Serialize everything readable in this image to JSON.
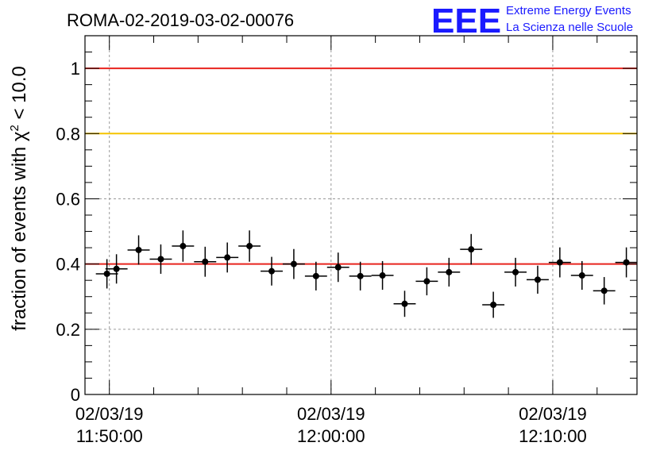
{
  "chart_data": {
    "type": "scatter",
    "title": "ROMA-02-2019-03-02-00076",
    "ylabel": "fraction of events with χ² < 10.0",
    "ylabel_main": "fraction of events with χ",
    "ylabel_sup": "2",
    "ylabel_tail": " < 10.0",
    "xlabel": "",
    "ylim": [
      0,
      1.1
    ],
    "yticks": [
      "0",
      "0.2",
      "0.4",
      "0.6",
      "0.8",
      "1"
    ],
    "ytick_values": [
      0,
      0.2,
      0.4,
      0.6,
      0.8,
      1.0
    ],
    "xlim_minutes": [
      -1.1,
      23.8
    ],
    "xticks": [
      {
        "minute": 0,
        "date": "02/03/19",
        "time": "11:50:00"
      },
      {
        "minute": 10,
        "date": "02/03/19",
        "time": "12:00:00"
      },
      {
        "minute": 20,
        "date": "02/03/19",
        "time": "12:10:00"
      }
    ],
    "grid": true,
    "reference_lines": [
      {
        "y": 1.0,
        "color": "#e8241f"
      },
      {
        "y": 0.8,
        "color": "#f5c400"
      },
      {
        "y": 0.4,
        "color": "#e8241f"
      }
    ],
    "bin_halfwidth_minutes": 0.5,
    "points": [
      {
        "x": -0.11,
        "y": 0.37,
        "err": 0.045
      },
      {
        "x": 0.32,
        "y": 0.385,
        "err": 0.045
      },
      {
        "x": 1.32,
        "y": 0.443,
        "err": 0.045
      },
      {
        "x": 2.32,
        "y": 0.415,
        "err": 0.045
      },
      {
        "x": 3.32,
        "y": 0.455,
        "err": 0.048
      },
      {
        "x": 4.32,
        "y": 0.407,
        "err": 0.046
      },
      {
        "x": 5.32,
        "y": 0.42,
        "err": 0.046
      },
      {
        "x": 6.32,
        "y": 0.455,
        "err": 0.048
      },
      {
        "x": 7.32,
        "y": 0.378,
        "err": 0.044
      },
      {
        "x": 8.32,
        "y": 0.4,
        "err": 0.046
      },
      {
        "x": 9.32,
        "y": 0.363,
        "err": 0.044
      },
      {
        "x": 10.32,
        "y": 0.39,
        "err": 0.045
      },
      {
        "x": 11.32,
        "y": 0.363,
        "err": 0.044
      },
      {
        "x": 12.32,
        "y": 0.365,
        "err": 0.044
      },
      {
        "x": 13.32,
        "y": 0.278,
        "err": 0.04
      },
      {
        "x": 14.32,
        "y": 0.347,
        "err": 0.043
      },
      {
        "x": 15.32,
        "y": 0.375,
        "err": 0.044
      },
      {
        "x": 16.32,
        "y": 0.445,
        "err": 0.047
      },
      {
        "x": 17.32,
        "y": 0.275,
        "err": 0.04
      },
      {
        "x": 18.32,
        "y": 0.375,
        "err": 0.044
      },
      {
        "x": 19.32,
        "y": 0.352,
        "err": 0.043
      },
      {
        "x": 20.32,
        "y": 0.405,
        "err": 0.046
      },
      {
        "x": 21.32,
        "y": 0.365,
        "err": 0.044
      },
      {
        "x": 22.32,
        "y": 0.318,
        "err": 0.042
      },
      {
        "x": 23.32,
        "y": 0.405,
        "err": 0.046
      }
    ]
  },
  "logo": {
    "mark": "EEE",
    "line1": "Extreme Energy Events",
    "line2": "La Scienza nelle Scuole"
  }
}
